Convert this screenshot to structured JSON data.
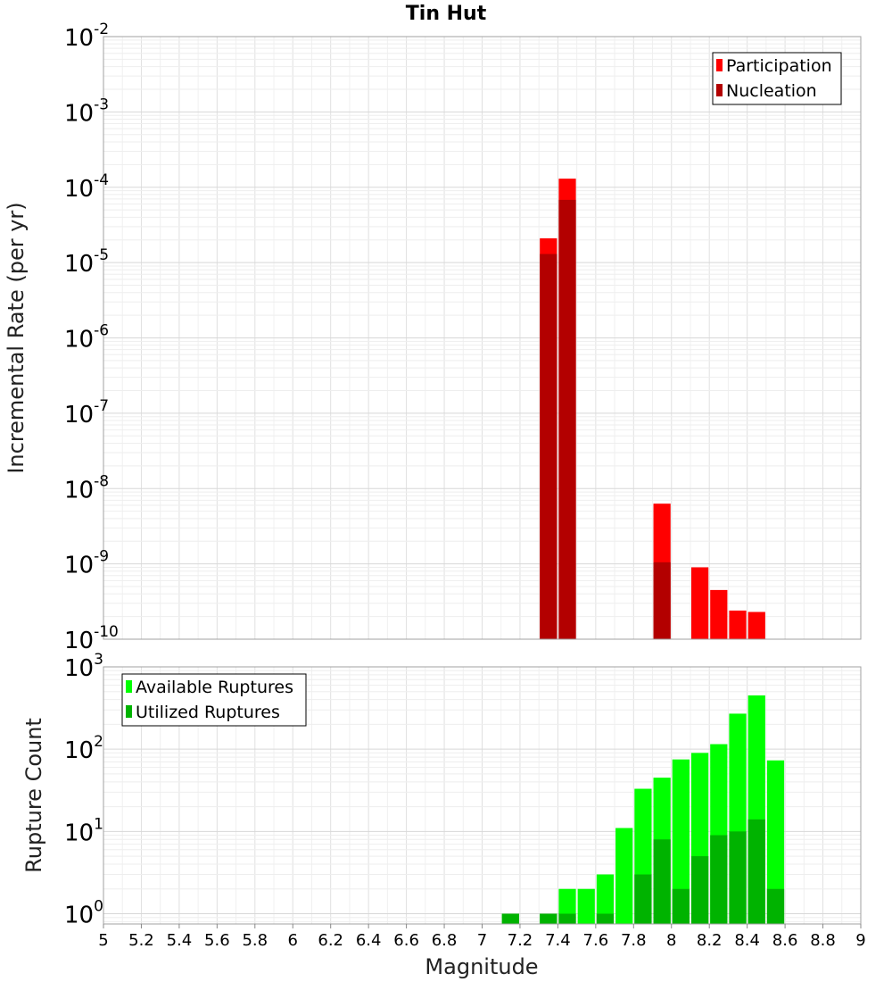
{
  "chart_data": {
    "title": "Tin Hut",
    "xlabel": "Magnitude",
    "xlim": [
      5,
      9
    ],
    "x_ticks": [
      "5",
      "5.2",
      "5.4",
      "5.6",
      "5.8",
      "6",
      "6.2",
      "6.4",
      "6.6",
      "6.8",
      "7",
      "7.2",
      "7.4",
      "7.6",
      "7.8",
      "8",
      "8.2",
      "8.4",
      "8.6",
      "8.8",
      "9"
    ],
    "bin_width": 0.1,
    "panels": [
      {
        "type": "bar",
        "yscale": "log",
        "ylabel": "Incremental Rate (per yr)",
        "ylim": [
          1e-10,
          0.01
        ],
        "y_tick_exponents": [
          -10,
          -9,
          -8,
          -7,
          -6,
          -5,
          -4,
          -3,
          -2
        ],
        "grid": true,
        "legend_position": "top-right",
        "series": [
          {
            "name": "Participation",
            "color": "#ff0000",
            "points": [
              [
                7.35,
                2.1e-05
              ],
              [
                7.45,
                0.00013
              ],
              [
                7.95,
                6.3e-09
              ],
              [
                8.15,
                9e-10
              ],
              [
                8.25,
                4.5e-10
              ],
              [
                8.35,
                2.4e-10
              ],
              [
                8.45,
                2.3e-10
              ]
            ]
          },
          {
            "name": "Nucleation",
            "color": "#b30000",
            "points": [
              [
                7.35,
                1.3e-05
              ],
              [
                7.45,
                6.8e-05
              ],
              [
                7.95,
                1.05e-09
              ]
            ]
          }
        ]
      },
      {
        "type": "bar",
        "yscale": "log",
        "ylabel": "Rupture Count",
        "ylim": [
          0.75,
          1000
        ],
        "y_tick_exponents": [
          0,
          1,
          2,
          3
        ],
        "grid": true,
        "legend_position": "top-left",
        "series": [
          {
            "name": "Available Ruptures",
            "color": "#00ff00",
            "points": [
              [
                7.15,
                1
              ],
              [
                7.35,
                1
              ],
              [
                7.45,
                2
              ],
              [
                7.55,
                2
              ],
              [
                7.65,
                3
              ],
              [
                7.75,
                11
              ],
              [
                7.85,
                33
              ],
              [
                7.95,
                45
              ],
              [
                8.05,
                75
              ],
              [
                8.15,
                90
              ],
              [
                8.25,
                115
              ],
              [
                8.35,
                270
              ],
              [
                8.45,
                450
              ],
              [
                8.55,
                73
              ]
            ]
          },
          {
            "name": "Utilized Ruptures",
            "color": "#00b300",
            "points": [
              [
                7.15,
                1
              ],
              [
                7.35,
                1
              ],
              [
                7.45,
                1
              ],
              [
                7.65,
                1
              ],
              [
                7.85,
                3
              ],
              [
                7.95,
                8
              ],
              [
                8.05,
                2
              ],
              [
                8.15,
                5
              ],
              [
                8.25,
                9
              ],
              [
                8.35,
                10
              ],
              [
                8.45,
                14
              ],
              [
                8.55,
                2
              ]
            ]
          }
        ]
      }
    ]
  }
}
